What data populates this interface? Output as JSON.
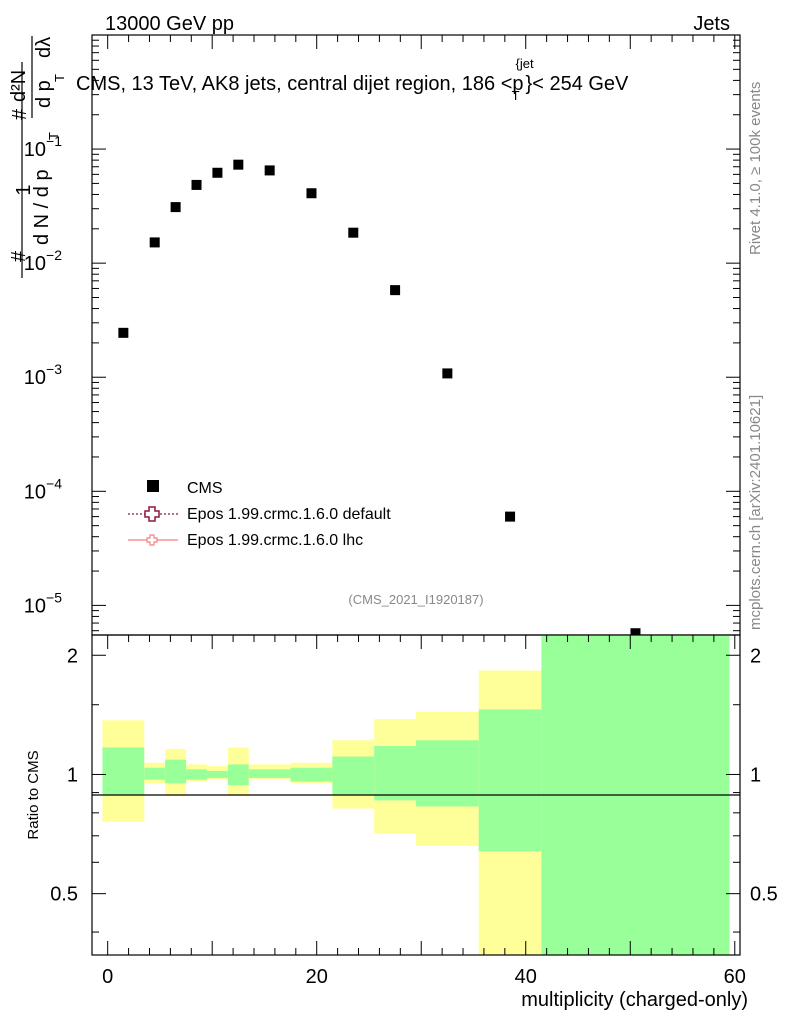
{
  "header": {
    "left": "13000 GeV pp",
    "right": "Jets"
  },
  "side_text": {
    "rivet": "Rivet 4.1.0, ≥ 100k events",
    "mcplots": "mcplots.cern.ch [arXiv:2401.10621]"
  },
  "chart_data": [
    {
      "type": "scatter",
      "title": "CMS, 13 TeV, AK8 jets, central dijet region, 186 <p_T^{jet}< 254 GeV",
      "title_parts": {
        "main": "CMS, 13 TeV, AK8 jets, central dijet region, 186 <p",
        "sub": "T",
        "sup": "{jet",
        "close": "}< 254 GeV"
      },
      "ylabel": "1/(dN/dp_T) d^2N/(dp_T dλ)",
      "ylabel_parts": {
        "one": "1",
        "hash": "#",
        "dN": "d N / d p",
        "T": "T",
        "d2N": "d²N",
        "dp": "d p",
        "dl": "dλ"
      },
      "yscale": "log",
      "ylim": [
        5.5e-06,
        1
      ],
      "xlim": [
        -1.5,
        60.5
      ],
      "y_ticks": [
        {
          "value": 1e-05,
          "base": "10",
          "exp": "−5"
        },
        {
          "value": 0.0001,
          "base": "10",
          "exp": "−4"
        },
        {
          "value": 0.001,
          "base": "10",
          "exp": "−3"
        },
        {
          "value": 0.01,
          "base": "10",
          "exp": "−2"
        },
        {
          "value": 0.1,
          "base": "10",
          "exp": "−1"
        }
      ],
      "series": [
        {
          "name": "CMS",
          "x": [
            1.5,
            4.5,
            6.5,
            8.5,
            10.5,
            12.5,
            15.5,
            19.5,
            23.5,
            27.5,
            32.5,
            38.5,
            50.5
          ],
          "values": [
            0.00245,
            0.0152,
            0.031,
            0.0485,
            0.062,
            0.073,
            0.065,
            0.041,
            0.0185,
            0.0058,
            0.00108,
            6e-05,
            5.7e-06
          ]
        }
      ],
      "legend": [
        {
          "label": "CMS",
          "marker": "square",
          "color": "#000000"
        },
        {
          "label": "Epos 1.99.crmc.1.6.0 default",
          "marker": "open-cross",
          "color": "#8b1a3a"
        },
        {
          "label": "Epos 1.99.crmc.1.6.0 lhc",
          "marker": "open-cross",
          "color": "#f08080"
        }
      ],
      "legend_position": "bottom-left",
      "watermark": "(CMS_2021_I1920187)"
    },
    {
      "type": "area",
      "ylabel": "Ratio to CMS",
      "xlabel": "multiplicity (charged-only)",
      "xlim": [
        -1.5,
        60.5
      ],
      "ylim": [
        0.35,
        2.25
      ],
      "x_ticks": [
        0,
        20,
        40,
        60
      ],
      "y_ticks": [
        0.5,
        1,
        2
      ],
      "bins": [
        {
          "x_low": -0.5,
          "x_high": 3.5,
          "green_low": 0.89,
          "green_high": 1.17,
          "yellow_low": 0.76,
          "yellow_high": 1.37
        },
        {
          "x_low": 3.5,
          "x_high": 5.5,
          "green_low": 0.97,
          "green_high": 1.04,
          "yellow_low": 0.95,
          "yellow_high": 1.07
        },
        {
          "x_low": 5.5,
          "x_high": 7.5,
          "green_low": 0.95,
          "green_high": 1.09,
          "yellow_low": 0.89,
          "yellow_high": 1.16
        },
        {
          "x_low": 7.5,
          "x_high": 9.5,
          "green_low": 0.97,
          "green_high": 1.03,
          "yellow_low": 0.96,
          "yellow_high": 1.06
        },
        {
          "x_low": 9.5,
          "x_high": 11.5,
          "green_low": 0.98,
          "green_high": 1.02,
          "yellow_low": 0.97,
          "yellow_high": 1.05
        },
        {
          "x_low": 11.5,
          "x_high": 13.5,
          "green_low": 0.94,
          "green_high": 1.06,
          "yellow_low": 0.89,
          "yellow_high": 1.17
        },
        {
          "x_low": 13.5,
          "x_high": 17.5,
          "green_low": 0.98,
          "green_high": 1.03,
          "yellow_low": 0.97,
          "yellow_high": 1.06
        },
        {
          "x_low": 17.5,
          "x_high": 21.5,
          "green_low": 0.96,
          "green_high": 1.04,
          "yellow_low": 0.95,
          "yellow_high": 1.07
        },
        {
          "x_low": 21.5,
          "x_high": 25.5,
          "green_low": 0.89,
          "green_high": 1.11,
          "yellow_low": 0.82,
          "yellow_high": 1.22
        },
        {
          "x_low": 25.5,
          "x_high": 29.5,
          "green_low": 0.86,
          "green_high": 1.18,
          "yellow_low": 0.71,
          "yellow_high": 1.38
        },
        {
          "x_low": 29.5,
          "x_high": 35.5,
          "green_low": 0.83,
          "green_high": 1.22,
          "yellow_low": 0.66,
          "yellow_high": 1.44
        },
        {
          "x_low": 35.5,
          "x_high": 41.5,
          "green_low": 0.64,
          "green_high": 1.46,
          "yellow_low": 0.35,
          "yellow_high": 1.83
        },
        {
          "x_low": 41.5,
          "x_high": 59.5,
          "green_low": 0.35,
          "green_high": 2.25,
          "yellow_low": 0.35,
          "yellow_high": 2.25
        }
      ],
      "colors": {
        "green": "#99ff99",
        "yellow": "#ffff99"
      }
    }
  ]
}
